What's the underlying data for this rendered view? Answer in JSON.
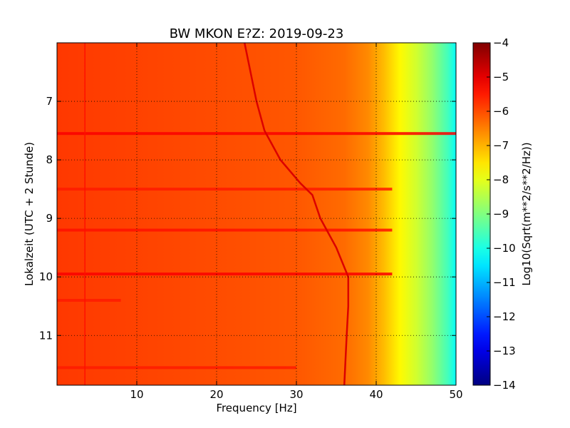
{
  "chart_data": {
    "type": "heatmap",
    "title": "BW MKON E?Z: 2019-09-23",
    "xlabel": "Frequency [Hz]",
    "ylabel": "Lokalzeit (UTC + 2 Stunde)",
    "xlim": [
      0,
      50
    ],
    "ylim": [
      11.85,
      6.0
    ],
    "x_ticks": [
      10,
      20,
      30,
      40,
      50
    ],
    "y_ticks": [
      7,
      8,
      9,
      10,
      11
    ],
    "grid": true,
    "colormap": "jet",
    "colorbar": {
      "label": "Log10(Sqrt(m**2/s**2/Hz))",
      "range": [
        -14,
        -4
      ],
      "ticks": [
        -4,
        -5,
        -6,
        -7,
        -8,
        -9,
        -10,
        -11,
        -12,
        -13,
        -14
      ]
    },
    "background_level_by_frequency": [
      {
        "freq": 0,
        "level": -5.8
      },
      {
        "freq": 10,
        "level": -5.9
      },
      {
        "freq": 20,
        "level": -6.0
      },
      {
        "freq": 30,
        "level": -6.1
      },
      {
        "freq": 36,
        "level": -6.3
      },
      {
        "freq": 39,
        "level": -6.6
      },
      {
        "freq": 41,
        "level": -7.1
      },
      {
        "freq": 43,
        "level": -7.7
      },
      {
        "freq": 45,
        "level": -8.2
      },
      {
        "freq": 47,
        "level": -8.8
      },
      {
        "freq": 49,
        "level": -9.6
      },
      {
        "freq": 50,
        "level": -10.2
      }
    ],
    "drifting_line": [
      {
        "time": 6.0,
        "freq": 23.5
      },
      {
        "time": 7.0,
        "freq": 25.0
      },
      {
        "time": 7.5,
        "freq": 26.0
      },
      {
        "time": 8.0,
        "freq": 28.0
      },
      {
        "time": 8.4,
        "freq": 30.5
      },
      {
        "time": 8.6,
        "freq": 32.0
      },
      {
        "time": 9.0,
        "freq": 33.0
      },
      {
        "time": 9.5,
        "freq": 35.0
      },
      {
        "time": 10.0,
        "freq": 36.5
      },
      {
        "time": 10.5,
        "freq": 36.5
      },
      {
        "time": 11.0,
        "freq": 36.3
      },
      {
        "time": 11.85,
        "freq": 36.0
      }
    ],
    "horizontal_bands": [
      {
        "time": 7.55,
        "level": -5.2,
        "freq_range": [
          0,
          50
        ]
      },
      {
        "time": 8.5,
        "level": -5.5,
        "freq_range": [
          0,
          42
        ]
      },
      {
        "time": 9.2,
        "level": -5.4,
        "freq_range": [
          0,
          42
        ]
      },
      {
        "time": 9.95,
        "level": -5.2,
        "freq_range": [
          0,
          42
        ]
      },
      {
        "time": 10.4,
        "level": -5.5,
        "freq_range": [
          0,
          8
        ]
      },
      {
        "time": 11.55,
        "level": -5.5,
        "freq_range": [
          0,
          30
        ]
      }
    ],
    "vertical_line": {
      "freq": 3.5,
      "level": -5.4
    }
  }
}
